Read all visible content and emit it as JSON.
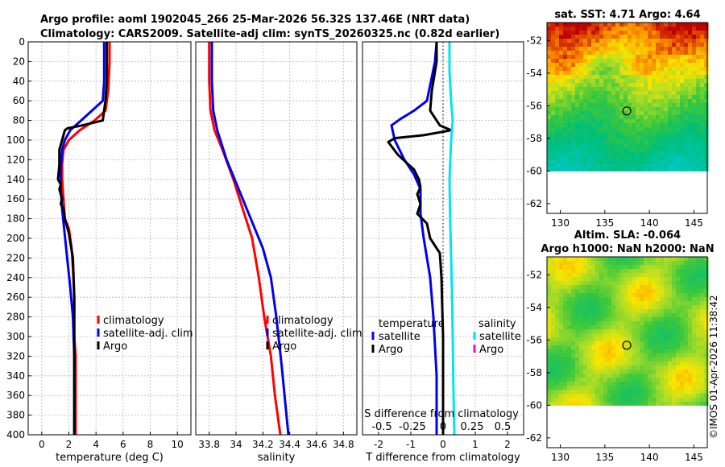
{
  "header": {
    "line1": "Argo profile: aoml 1902045_266 25-Mar-2026 56.32S 137.46E (NRT data)",
    "line2": "Climatology: CARS2009. Satellite-adj clim: synTS_20260325.nc (0.82d earlier)"
  },
  "stamp": "©IMOS 01-Apr-2026 11:38:42",
  "colors": {
    "clim": "#ff0000",
    "sat": "#0000ee",
    "argo": "#000000",
    "salsat": "#00e5ee",
    "salargo": "#ff00cc"
  },
  "chart_data": [
    {
      "type": "line",
      "name": "temperature-panel",
      "xlabel": "temperature (deg C)",
      "ylabel": "",
      "xlim": [
        -1,
        11
      ],
      "ylim": [
        400,
        0
      ],
      "xticks": [
        "0",
        "2",
        "4",
        "6",
        "8",
        "10"
      ],
      "xtick_values": [
        0,
        2,
        4,
        6,
        8,
        10
      ],
      "yticks": [
        "0",
        "20",
        "40",
        "60",
        "80",
        "100",
        "120",
        "140",
        "160",
        "180",
        "200",
        "220",
        "240",
        "260",
        "280",
        "300",
        "320",
        "340",
        "360",
        "380",
        "400"
      ],
      "ytick_values": [
        0,
        20,
        40,
        60,
        80,
        100,
        120,
        140,
        160,
        180,
        200,
        220,
        240,
        260,
        280,
        300,
        320,
        340,
        360,
        380,
        400
      ],
      "legend": [
        "climatology",
        "satellite-adj. clim",
        "Argo"
      ],
      "series": [
        {
          "name": "climatology",
          "color": "#ff0000",
          "x": [
            5.0,
            5.0,
            4.9,
            4.7,
            3.9,
            2.8,
            2.0,
            1.6,
            1.5,
            1.5,
            1.6,
            1.7,
            2.0,
            2.2,
            2.3,
            2.4,
            2.4,
            2.4,
            2.5,
            2.5,
            2.5,
            2.5
          ],
          "y": [
            0,
            20,
            50,
            70,
            80,
            90,
            100,
            110,
            125,
            140,
            160,
            180,
            190,
            210,
            230,
            260,
            280,
            300,
            320,
            350,
            380,
            400
          ]
        },
        {
          "name": "satellite-adj. clim",
          "color": "#0000ee",
          "x": [
            4.6,
            4.6,
            4.5,
            2.9,
            2.1,
            1.7,
            1.5,
            1.4,
            1.4,
            1.5,
            1.8,
            2.1,
            2.3,
            2.4,
            2.4,
            2.4
          ],
          "y": [
            0,
            40,
            60,
            80,
            90,
            100,
            110,
            130,
            150,
            170,
            210,
            250,
            280,
            320,
            360,
            400
          ]
        },
        {
          "name": "Argo",
          "color": "#000000",
          "x": [
            4.8,
            4.8,
            4.7,
            4.5,
            3.0,
            1.9,
            1.7,
            1.5,
            1.3,
            1.3,
            1.2,
            1.4,
            1.3,
            1.4,
            1.5,
            1.4,
            1.6,
            1.7,
            2.0,
            2.3,
            2.4,
            2.4,
            2.4,
            2.4
          ],
          "y": [
            0,
            40,
            60,
            80,
            85,
            88,
            90,
            100,
            110,
            125,
            140,
            145,
            150,
            155,
            160,
            165,
            170,
            180,
            195,
            220,
            260,
            300,
            350,
            400
          ]
        }
      ]
    },
    {
      "type": "line",
      "name": "salinity-panel",
      "xlabel": "salinity",
      "xlim": [
        33.7,
        34.9
      ],
      "ylim": [
        400,
        0
      ],
      "xticks": [
        "33.8",
        "34",
        "34.2",
        "34.4",
        "34.6",
        "34.8"
      ],
      "xtick_values": [
        33.8,
        34.0,
        34.2,
        34.4,
        34.6,
        34.8
      ],
      "legend": [
        "climatology",
        "satellite-adj. clim",
        "Argo"
      ],
      "series": [
        {
          "name": "climatology",
          "color": "#ff0000",
          "x": [
            33.8,
            33.8,
            33.81,
            33.84,
            33.9,
            33.98,
            34.05,
            34.12,
            34.17,
            34.21,
            34.26,
            34.29,
            34.33
          ],
          "y": [
            0,
            40,
            70,
            90,
            110,
            140,
            170,
            200,
            240,
            280,
            320,
            360,
            400
          ]
        },
        {
          "name": "satellite-adj. clim",
          "color": "#0000ee",
          "x": [
            33.82,
            33.82,
            33.83,
            33.86,
            33.93,
            34.02,
            34.11,
            34.2,
            34.26,
            34.3,
            34.34,
            34.39
          ],
          "y": [
            0,
            40,
            70,
            90,
            120,
            150,
            180,
            210,
            240,
            280,
            330,
            400
          ]
        },
        {
          "name": "Argo",
          "color": "#000000",
          "x": [],
          "y": []
        }
      ]
    },
    {
      "type": "line",
      "name": "difference-panel",
      "xlabel": "T difference from climatology",
      "top_axis_label": "S difference from climatology",
      "xlim": [
        -2.5,
        2.5
      ],
      "ylim": [
        400,
        0
      ],
      "xticks": [
        "-2",
        "-1",
        "0",
        "1",
        "2"
      ],
      "xtick_values": [
        -2,
        -1,
        0,
        1,
        2
      ],
      "top_ticks": [
        "-0.5",
        "-0.25",
        "0",
        "0.25",
        "0.5"
      ],
      "legend_left": {
        "title": "temperature",
        "items": [
          "satellite",
          "Argo"
        ]
      },
      "legend_right": {
        "title": "salinity",
        "items": [
          "satellite",
          "Argo"
        ]
      },
      "series": [
        {
          "name": "temperature satellite",
          "color": "#0000ee",
          "x": [
            -0.2,
            -0.25,
            -0.5,
            -0.9,
            -1.3,
            -1.6,
            -1.5,
            -1.2,
            -0.9,
            -0.7,
            -0.7,
            -0.6,
            -0.4,
            -0.3,
            -0.2,
            -0.2
          ],
          "y": [
            0,
            20,
            60,
            70,
            78,
            85,
            100,
            120,
            135,
            150,
            175,
            200,
            240,
            280,
            340,
            400
          ]
        },
        {
          "name": "temperature Argo",
          "color": "#000000",
          "x": [
            -0.2,
            -0.2,
            -0.35,
            -0.4,
            -0.1,
            0.25,
            -0.6,
            -1.5,
            -1.7,
            -1.4,
            -0.9,
            -0.75,
            -0.7,
            -0.8,
            -0.7,
            -0.8,
            -0.5,
            -0.4,
            -0.1,
            -0.05,
            0.0,
            0.0,
            0.0
          ],
          "y": [
            0,
            20,
            50,
            70,
            85,
            90,
            95,
            98,
            102,
            115,
            130,
            140,
            148,
            155,
            165,
            175,
            185,
            200,
            215,
            240,
            300,
            350,
            400
          ]
        },
        {
          "name": "salinity satellite",
          "color": "#00e5ee",
          "x": [
            0.2,
            0.2,
            0.25,
            0.3,
            0.25,
            0.2,
            0.22,
            0.25,
            0.28,
            0.3,
            0.32,
            0.35
          ],
          "y": [
            0,
            30,
            60,
            80,
            100,
            140,
            180,
            220,
            260,
            300,
            350,
            400
          ]
        },
        {
          "name": "salinity Argo",
          "color": "#ff00cc",
          "x": [],
          "y": []
        }
      ]
    },
    {
      "type": "heatmap",
      "name": "sst-map",
      "title": "sat. SST: 4.71 Argo: 4.64",
      "xlim": [
        128.5,
        146.5
      ],
      "ylim": [
        -62.6,
        -50.9
      ],
      "xticks": [
        "130",
        "135",
        "140",
        "145"
      ],
      "xtick_values": [
        130,
        135,
        140,
        145
      ],
      "yticks": [
        "-52",
        "-54",
        "-56",
        "-58",
        "-60",
        "-62"
      ],
      "ytick_values": [
        -52,
        -54,
        -56,
        -58,
        -60,
        -62
      ],
      "data_extent_lat": [
        -60,
        -50.9
      ],
      "argo_position": {
        "lon": 137.46,
        "lat": -56.32
      }
    },
    {
      "type": "heatmap",
      "name": "sla-map",
      "title": "Altim. SLA: -0.064",
      "subtitle": "Argo h1000: NaN h2000: NaN",
      "xlim": [
        128.5,
        146.5
      ],
      "ylim": [
        -62.6,
        -50.9
      ],
      "xticks": [
        "130",
        "135",
        "140",
        "145"
      ],
      "xtick_values": [
        130,
        135,
        140,
        145
      ],
      "yticks": [
        "-52",
        "-54",
        "-56",
        "-58",
        "-60",
        "-62"
      ],
      "ytick_values": [
        -52,
        -54,
        -56,
        -58,
        -60,
        -62
      ],
      "data_extent_lat": [
        -60,
        -50.9
      ],
      "argo_position": {
        "lon": 137.46,
        "lat": -56.32
      }
    }
  ]
}
